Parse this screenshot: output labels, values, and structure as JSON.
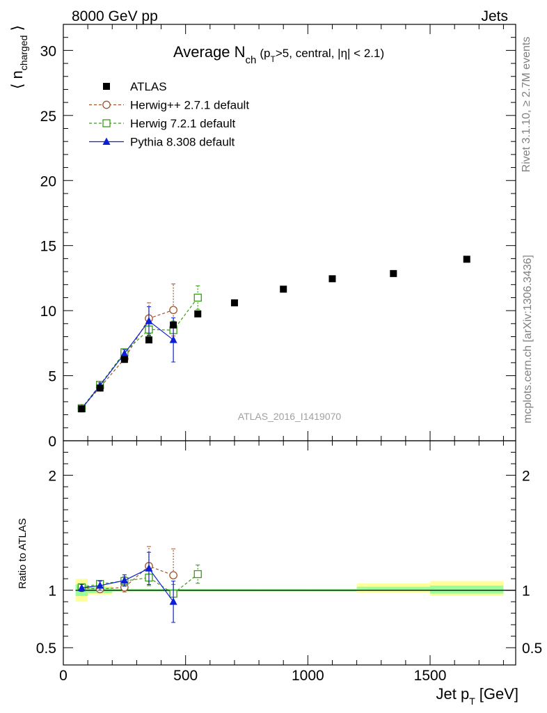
{
  "header": {
    "left": "8000 GeV pp",
    "right": "Jets"
  },
  "side": {
    "rivet": "Rivet 3.1.10, ≥ 2.7M events",
    "mcplots": "mcplots.cern.ch [arXiv:1306.3436]"
  },
  "chart_data": [
    {
      "type": "scatter",
      "panel": "main",
      "title": "Average N_ch (p_T>5, central, |η| < 2.1)",
      "title_main": "Average N",
      "title_sub": "ch",
      "title_mid": "(p",
      "title_sub2": "T",
      "title_tail": ">5, central, |η| < 2.1)",
      "ylabel": "⟨ n_charged ⟩",
      "ylabel_main": "n",
      "ylabel_sub": "charged",
      "ylim": [
        0,
        32
      ],
      "yticks": [
        0,
        5,
        10,
        15,
        20,
        25,
        30
      ],
      "xlim": [
        0,
        1850
      ],
      "xticks": [
        0,
        500,
        1000,
        1500
      ],
      "analysis_label": "ATLAS_2016_I1419070",
      "legend_position": "top-left",
      "series": [
        {
          "name": "ATLAS",
          "color": "#000000",
          "marker": "filled-square",
          "x": [
            75,
            150,
            250,
            350,
            450,
            550,
            700,
            900,
            1100,
            1350,
            1650
          ],
          "y": [
            2.45,
            4.05,
            6.25,
            7.75,
            8.9,
            9.75,
            10.6,
            11.65,
            12.45,
            12.85,
            13.95
          ]
        },
        {
          "name": "Herwig++ 2.7.1 default",
          "color": "#a0522d",
          "marker": "open-circle",
          "linestyle": "dashed",
          "x": [
            75,
            150,
            250,
            350,
            450
          ],
          "y": [
            2.5,
            4.1,
            6.3,
            9.4,
            10.05
          ],
          "err": [
            0.1,
            0.15,
            0.25,
            1.2,
            2.0
          ]
        },
        {
          "name": "Herwig 7.2.1 default",
          "color": "#3a9a14",
          "marker": "open-square",
          "linestyle": "dashed",
          "x": [
            75,
            150,
            250,
            350,
            450,
            550
          ],
          "y": [
            2.5,
            4.3,
            6.8,
            8.55,
            8.5,
            11.0
          ],
          "err": [
            0.1,
            0.15,
            0.2,
            0.5,
            0.7,
            0.9
          ]
        },
        {
          "name": "Pythia 8.308 default",
          "color": "#0a1fd6",
          "marker": "filled-triangle",
          "linestyle": "solid",
          "x": [
            75,
            150,
            250,
            350,
            450
          ],
          "y": [
            2.45,
            4.25,
            6.7,
            9.2,
            7.75
          ],
          "err": [
            0.1,
            0.2,
            0.3,
            1.1,
            1.7
          ]
        }
      ]
    },
    {
      "type": "scatter",
      "panel": "ratio",
      "ylabel": "Ratio to ATLAS",
      "xlabel": "Jet p_T [GeV]",
      "xlabel_main": "Jet p",
      "xlabel_sub": "T",
      "xlabel_unit": "[GeV]",
      "ylim": [
        0.35,
        2.3
      ],
      "yticks": [
        0.5,
        1,
        2
      ],
      "xlim": [
        0,
        1850
      ],
      "xticks": [
        0,
        500,
        1000,
        1500
      ],
      "bands": [
        {
          "x0": 50,
          "x1": 100,
          "yellow": [
            0.9,
            1.1
          ],
          "green": [
            0.95,
            1.05
          ]
        },
        {
          "x0": 100,
          "x1": 200,
          "yellow": [
            0.96,
            1.04
          ],
          "green": [
            0.975,
            1.025
          ]
        },
        {
          "x0": 200,
          "x1": 300,
          "yellow": [
            0.985,
            1.015
          ],
          "green": [
            0.99,
            1.01
          ]
        },
        {
          "x0": 300,
          "x1": 400,
          "yellow": [
            0.985,
            1.015
          ],
          "green": [
            0.99,
            1.01
          ]
        },
        {
          "x0": 400,
          "x1": 500,
          "yellow": [
            0.985,
            1.015
          ],
          "green": [
            0.99,
            1.01
          ]
        },
        {
          "x0": 500,
          "x1": 600,
          "yellow": [
            0.985,
            1.015
          ],
          "green": [
            0.99,
            1.01
          ]
        },
        {
          "x0": 600,
          "x1": 800,
          "yellow": [
            0.985,
            1.015
          ],
          "green": [
            0.99,
            1.01
          ]
        },
        {
          "x0": 800,
          "x1": 1000,
          "yellow": [
            0.985,
            1.015
          ],
          "green": [
            0.99,
            1.01
          ]
        },
        {
          "x0": 1000,
          "x1": 1200,
          "yellow": [
            0.985,
            1.015
          ],
          "green": [
            0.99,
            1.01
          ]
        },
        {
          "x0": 1200,
          "x1": 1500,
          "yellow": [
            0.98,
            1.06
          ],
          "green": [
            0.995,
            1.03
          ]
        },
        {
          "x0": 1500,
          "x1": 1800,
          "yellow": [
            0.95,
            1.08
          ],
          "green": [
            0.97,
            1.04
          ]
        }
      ],
      "series": [
        {
          "name": "Herwig++ 2.7.1 default",
          "color": "#a0522d",
          "marker": "open-circle",
          "linestyle": "dashed",
          "x": [
            75,
            150,
            250,
            350,
            450
          ],
          "y": [
            1.02,
            1.01,
            1.025,
            1.21,
            1.13
          ],
          "err": [
            0.03,
            0.03,
            0.04,
            0.17,
            0.23
          ]
        },
        {
          "name": "Herwig 7.2.1 default",
          "color": "#3a9a14",
          "marker": "open-square",
          "linestyle": "dashed",
          "x": [
            75,
            150,
            250,
            350,
            450,
            550
          ],
          "y": [
            1.025,
            1.055,
            1.08,
            1.11,
            0.97,
            1.14
          ],
          "err": [
            0.03,
            0.03,
            0.04,
            0.07,
            0.08,
            0.08
          ]
        },
        {
          "name": "Pythia 8.308 default",
          "color": "#0a1fd6",
          "marker": "filled-triangle",
          "linestyle": "solid",
          "x": [
            75,
            150,
            250,
            350,
            450
          ],
          "y": [
            1.02,
            1.04,
            1.085,
            1.19,
            0.9
          ],
          "err": [
            0.03,
            0.04,
            0.05,
            0.14,
            0.18
          ]
        }
      ]
    }
  ]
}
